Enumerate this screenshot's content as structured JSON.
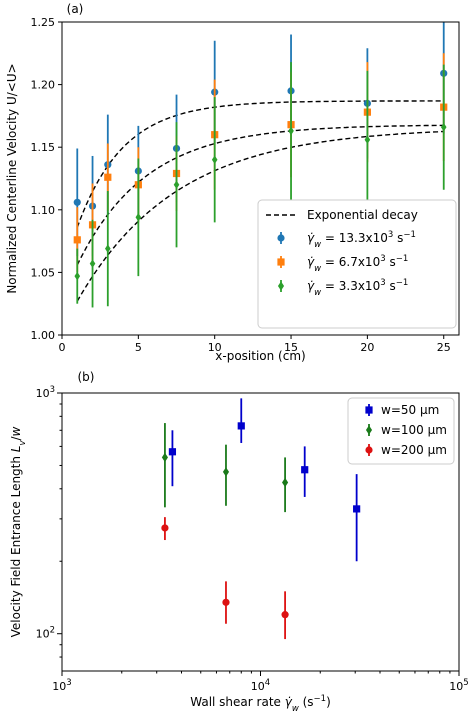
{
  "chart_data": [
    {
      "panel_label": "(a)",
      "type": "scatter",
      "xlabel": "x-position (cm)",
      "ylabel": "Normalized Centerline Velocity U/<U>",
      "xlim": [
        0,
        26
      ],
      "ylim": [
        1.0,
        1.25
      ],
      "xticks": [
        0,
        5,
        10,
        15,
        20,
        25
      ],
      "yticks": [
        1.0,
        1.05,
        1.1,
        1.15,
        1.2,
        1.25
      ],
      "legend_position": "lower-right",
      "fit_label": "Exponential decay",
      "series": [
        {
          "name": "γ̇w = 13.3x10³ s⁻¹",
          "legend_parts": [
            "γ̇",
            "w",
            " = 13.3x10",
            "3",
            " s",
            "−1"
          ],
          "color": "#1f77b4",
          "marker": "circle",
          "x": [
            1,
            2,
            3,
            5,
            7.5,
            10,
            15,
            20,
            25
          ],
          "y": [
            1.106,
            1.103,
            1.136,
            1.131,
            1.149,
            1.194,
            1.195,
            1.185,
            1.209
          ],
          "err": [
            0.043,
            0.04,
            0.04,
            0.036,
            0.043,
            0.041,
            0.045,
            0.044,
            0.048
          ],
          "fit": [
            1.187,
            0.0,
            3.0
          ]
        },
        {
          "name": "γ̇w = 6.7x10³ s⁻¹",
          "legend_parts": [
            "γ̇",
            "w",
            " = 6.7x10",
            "3",
            " s",
            "−1"
          ],
          "color": "#ff7f0e",
          "marker": "square",
          "x": [
            1,
            2,
            3,
            5,
            7.5,
            10,
            15,
            20,
            25
          ],
          "y": [
            1.076,
            1.088,
            1.126,
            1.12,
            1.129,
            1.16,
            1.168,
            1.178,
            1.182
          ],
          "err": [
            0.026,
            0.033,
            0.027,
            0.03,
            0.03,
            0.044,
            0.042,
            0.04,
            0.043
          ],
          "fit": [
            1.168,
            0.0,
            4.5
          ]
        },
        {
          "name": "γ̇w = 3.3x10³ s⁻¹",
          "legend_parts": [
            "γ̇",
            "w",
            " = 3.3x10",
            "3",
            " s",
            "−1"
          ],
          "color": "#2ca02c",
          "marker": "diamond",
          "x": [
            1,
            2,
            3,
            5,
            7.5,
            10,
            15,
            20,
            25
          ],
          "y": [
            1.047,
            1.057,
            1.069,
            1.094,
            1.12,
            1.14,
            1.163,
            1.156,
            1.166
          ],
          "err": [
            0.022,
            0.035,
            0.046,
            0.047,
            0.05,
            0.05,
            0.055,
            0.055,
            0.05
          ],
          "fit": [
            1.166,
            0.0,
            6.5
          ]
        }
      ]
    },
    {
      "panel_label": "(b)",
      "type": "scatter",
      "xlabel_parts": [
        "Wall shear rate ",
        "γ̇",
        "w",
        " (s",
        "−1",
        ")"
      ],
      "ylabel_parts": [
        "Velocity Field Entrance Length ",
        "L",
        "v",
        "/",
        "w"
      ],
      "x_scale": "log",
      "y_scale": "log",
      "xlim": [
        1000,
        100000
      ],
      "ylim": [
        70,
        1000
      ],
      "xticks": [
        {
          "value": 1000,
          "base": "10",
          "exp": "3"
        },
        {
          "value": 10000,
          "base": "10",
          "exp": "4"
        },
        {
          "value": 100000,
          "base": "10",
          "exp": "5"
        }
      ],
      "yticks": [
        {
          "value": 100,
          "base": "10",
          "exp": "2"
        },
        {
          "value": 1000,
          "base": "10",
          "exp": "3"
        }
      ],
      "legend_position": "upper-right",
      "series": [
        {
          "name": "w=50 μm",
          "legend_label": "w=50 μm",
          "color": "#0000cc",
          "marker": "square",
          "x": [
            3600,
            8000,
            16700,
            30500
          ],
          "y": [
            570,
            730,
            480,
            330
          ],
          "ylow": [
            410,
            620,
            370,
            200
          ],
          "yhigh": [
            700,
            950,
            600,
            460
          ]
        },
        {
          "name": "w=100 μm",
          "legend_label": "w=100 μm",
          "color": "#1a7a1a",
          "marker": "diamond",
          "x": [
            3300,
            6700,
            13300
          ],
          "y": [
            540,
            470,
            425
          ],
          "ylow": [
            335,
            340,
            320
          ],
          "yhigh": [
            750,
            610,
            540
          ]
        },
        {
          "name": "w=200 μm",
          "legend_label": "w=200 μm",
          "color": "#dd1111",
          "marker": "circle",
          "x": [
            3300,
            6700,
            13300
          ],
          "y": [
            275,
            135,
            120
          ],
          "ylow": [
            245,
            110,
            95
          ],
          "yhigh": [
            305,
            165,
            150
          ]
        }
      ]
    }
  ]
}
